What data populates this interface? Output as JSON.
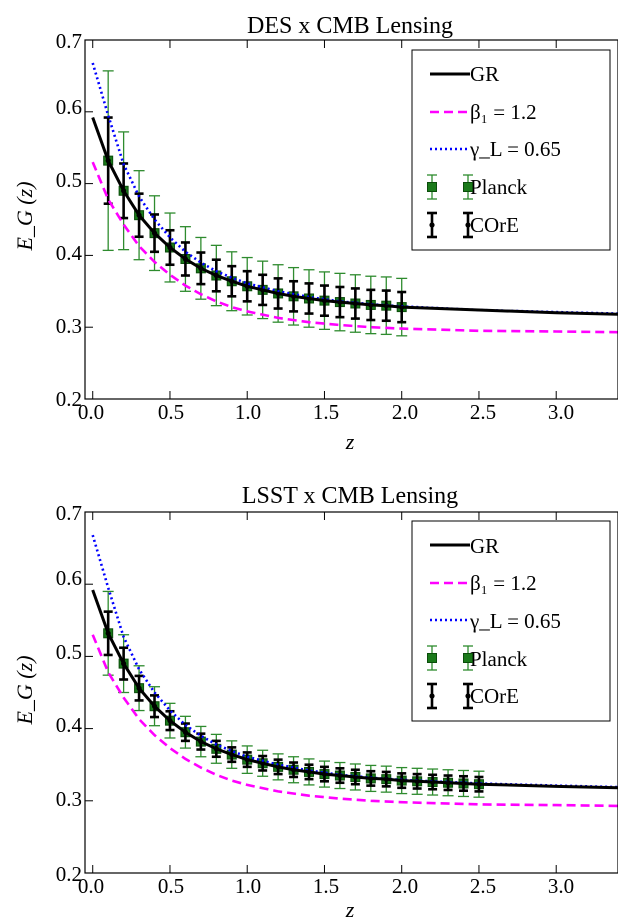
{
  "chart_data": [
    {
      "type": "line",
      "title": "DES x CMB Lensing",
      "xlabel": "z",
      "ylabel": "E_G (z)",
      "xlim": [
        -0.05,
        3.4
      ],
      "ylim": [
        0.2,
        0.7
      ],
      "x_ticks": [
        "0.0",
        "0.5",
        "1.0",
        "1.5",
        "2.0",
        "2.5",
        "3.0"
      ],
      "y_ticks": [
        "0.2",
        "0.3",
        "0.4",
        "0.5",
        "0.6",
        "0.7"
      ],
      "legend_position": "top-right",
      "series": [
        {
          "name": "GR",
          "style": "solid",
          "color": "#000000",
          "x": [
            0.0,
            0.1,
            0.2,
            0.3,
            0.4,
            0.5,
            0.6,
            0.7,
            0.8,
            0.9,
            1.0,
            1.1,
            1.2,
            1.3,
            1.4,
            1.5,
            1.6,
            1.7,
            1.8,
            1.9,
            2.0,
            2.5,
            3.0,
            3.4
          ],
          "y": [
            0.592,
            0.532,
            0.49,
            0.456,
            0.431,
            0.411,
            0.395,
            0.382,
            0.372,
            0.364,
            0.357,
            0.352,
            0.347,
            0.343,
            0.34,
            0.337,
            0.335,
            0.333,
            0.331,
            0.33,
            0.328,
            0.324,
            0.32,
            0.318
          ]
        },
        {
          "name": "β₁ = 1.2",
          "style": "dashed",
          "color": "#ff00ff",
          "x": [
            0.0,
            0.1,
            0.2,
            0.3,
            0.4,
            0.5,
            0.6,
            0.7,
            0.8,
            0.9,
            1.0,
            1.2,
            1.4,
            1.6,
            1.8,
            2.0,
            2.5,
            3.0,
            3.4
          ],
          "y": [
            0.53,
            0.478,
            0.443,
            0.413,
            0.391,
            0.373,
            0.358,
            0.346,
            0.336,
            0.328,
            0.322,
            0.313,
            0.307,
            0.303,
            0.3,
            0.298,
            0.295,
            0.294,
            0.293
          ]
        },
        {
          "name": "γ_L = 0.65",
          "style": "dotted",
          "color": "#0000ff",
          "x": [
            0.0,
            0.1,
            0.2,
            0.3,
            0.4,
            0.5,
            0.6,
            0.7,
            0.8,
            0.9,
            1.0,
            1.2,
            1.4,
            1.6,
            1.8,
            2.0,
            2.5,
            3.0,
            3.4
          ],
          "y": [
            0.668,
            0.595,
            0.527,
            0.482,
            0.45,
            0.425,
            0.405,
            0.39,
            0.378,
            0.369,
            0.361,
            0.35,
            0.342,
            0.336,
            0.332,
            0.329,
            0.324,
            0.321,
            0.319
          ]
        },
        {
          "name": "Planck",
          "style": "errorbar-square",
          "color": "#2e8b2e",
          "marker_color": "#1a7a1a",
          "x": [
            0.1,
            0.2,
            0.3,
            0.4,
            0.5,
            0.6,
            0.7,
            0.8,
            0.9,
            1.0,
            1.1,
            1.2,
            1.3,
            1.4,
            1.5,
            1.6,
            1.7,
            1.8,
            1.9,
            2.0
          ],
          "y": [
            0.532,
            0.49,
            0.456,
            0.431,
            0.411,
            0.395,
            0.382,
            0.372,
            0.364,
            0.357,
            0.352,
            0.347,
            0.343,
            0.34,
            0.337,
            0.335,
            0.333,
            0.331,
            0.33,
            0.328
          ],
          "err": [
            0.125,
            0.082,
            0.062,
            0.052,
            0.048,
            0.045,
            0.043,
            0.042,
            0.041,
            0.04,
            0.04,
            0.04,
            0.04,
            0.04,
            0.04,
            0.04,
            0.04,
            0.04,
            0.04,
            0.04
          ]
        },
        {
          "name": "COrE",
          "style": "errorbar-dot",
          "color": "#000000",
          "x": [
            0.1,
            0.2,
            0.3,
            0.4,
            0.5,
            0.6,
            0.7,
            0.8,
            0.9,
            1.0,
            1.1,
            1.2,
            1.3,
            1.4,
            1.5,
            1.6,
            1.7,
            1.8,
            1.9,
            2.0
          ],
          "y": [
            0.532,
            0.49,
            0.456,
            0.431,
            0.411,
            0.395,
            0.382,
            0.372,
            0.364,
            0.357,
            0.352,
            0.347,
            0.343,
            0.34,
            0.337,
            0.335,
            0.333,
            0.331,
            0.33,
            0.328
          ],
          "err": [
            0.06,
            0.038,
            0.03,
            0.026,
            0.024,
            0.023,
            0.022,
            0.022,
            0.021,
            0.021,
            0.021,
            0.021,
            0.021,
            0.021,
            0.021,
            0.021,
            0.021,
            0.021,
            0.021,
            0.021
          ]
        }
      ]
    },
    {
      "type": "line",
      "title": "LSST x CMB Lensing",
      "xlabel": "z",
      "ylabel": "E_G (z)",
      "xlim": [
        -0.05,
        3.4
      ],
      "ylim": [
        0.2,
        0.7
      ],
      "x_ticks": [
        "0.0",
        "0.5",
        "1.0",
        "1.5",
        "2.0",
        "2.5",
        "3.0"
      ],
      "y_ticks": [
        "0.2",
        "0.3",
        "0.4",
        "0.5",
        "0.6",
        "0.7"
      ],
      "legend_position": "top-right",
      "series": [
        {
          "name": "GR",
          "style": "solid",
          "color": "#000000",
          "x": [
            0.0,
            0.1,
            0.2,
            0.3,
            0.4,
            0.5,
            0.6,
            0.7,
            0.8,
            0.9,
            1.0,
            1.1,
            1.2,
            1.3,
            1.4,
            1.5,
            1.6,
            1.7,
            1.8,
            1.9,
            2.0,
            2.1,
            2.2,
            2.3,
            2.4,
            2.5,
            3.0,
            3.4
          ],
          "y": [
            0.592,
            0.532,
            0.49,
            0.456,
            0.431,
            0.411,
            0.395,
            0.382,
            0.372,
            0.364,
            0.357,
            0.352,
            0.347,
            0.343,
            0.34,
            0.337,
            0.335,
            0.333,
            0.331,
            0.33,
            0.328,
            0.327,
            0.326,
            0.325,
            0.324,
            0.323,
            0.32,
            0.318
          ]
        },
        {
          "name": "β₁ = 1.2",
          "style": "dashed",
          "color": "#ff00ff",
          "x": [
            0.0,
            0.1,
            0.2,
            0.3,
            0.4,
            0.5,
            0.6,
            0.7,
            0.8,
            0.9,
            1.0,
            1.2,
            1.4,
            1.6,
            1.8,
            2.0,
            2.5,
            3.0,
            3.4
          ],
          "y": [
            0.53,
            0.478,
            0.443,
            0.413,
            0.391,
            0.373,
            0.358,
            0.346,
            0.336,
            0.328,
            0.322,
            0.313,
            0.307,
            0.303,
            0.3,
            0.298,
            0.295,
            0.294,
            0.293
          ]
        },
        {
          "name": "γ_L = 0.65",
          "style": "dotted",
          "color": "#0000ff",
          "x": [
            0.0,
            0.1,
            0.2,
            0.3,
            0.4,
            0.5,
            0.6,
            0.7,
            0.8,
            0.9,
            1.0,
            1.2,
            1.4,
            1.6,
            1.8,
            2.0,
            2.5,
            3.0,
            3.4
          ],
          "y": [
            0.668,
            0.595,
            0.527,
            0.482,
            0.45,
            0.425,
            0.405,
            0.39,
            0.378,
            0.369,
            0.361,
            0.35,
            0.342,
            0.336,
            0.332,
            0.329,
            0.324,
            0.321,
            0.319
          ]
        },
        {
          "name": "Planck",
          "style": "errorbar-square",
          "color": "#2e8b2e",
          "marker_color": "#1a7a1a",
          "x": [
            0.1,
            0.2,
            0.3,
            0.4,
            0.5,
            0.6,
            0.7,
            0.8,
            0.9,
            1.0,
            1.1,
            1.2,
            1.3,
            1.4,
            1.5,
            1.6,
            1.7,
            1.8,
            1.9,
            2.0,
            2.1,
            2.2,
            2.3,
            2.4,
            2.5
          ],
          "y": [
            0.532,
            0.49,
            0.456,
            0.431,
            0.411,
            0.395,
            0.382,
            0.372,
            0.364,
            0.357,
            0.352,
            0.347,
            0.343,
            0.34,
            0.337,
            0.335,
            0.333,
            0.331,
            0.33,
            0.328,
            0.327,
            0.326,
            0.325,
            0.324,
            0.323
          ],
          "err": [
            0.058,
            0.04,
            0.031,
            0.027,
            0.024,
            0.022,
            0.021,
            0.02,
            0.019,
            0.019,
            0.018,
            0.018,
            0.018,
            0.018,
            0.018,
            0.018,
            0.018,
            0.018,
            0.018,
            0.018,
            0.018,
            0.018,
            0.018,
            0.018,
            0.018
          ]
        },
        {
          "name": "COrE",
          "style": "errorbar-dot",
          "color": "#000000",
          "x": [
            0.1,
            0.2,
            0.3,
            0.4,
            0.5,
            0.6,
            0.7,
            0.8,
            0.9,
            1.0,
            1.1,
            1.2,
            1.3,
            1.4,
            1.5,
            1.6,
            1.7,
            1.8,
            1.9,
            2.0,
            2.1,
            2.2,
            2.3,
            2.4,
            2.5
          ],
          "y": [
            0.532,
            0.49,
            0.456,
            0.431,
            0.411,
            0.395,
            0.382,
            0.372,
            0.364,
            0.357,
            0.352,
            0.347,
            0.343,
            0.34,
            0.337,
            0.335,
            0.333,
            0.331,
            0.33,
            0.328,
            0.327,
            0.326,
            0.325,
            0.324,
            0.323
          ],
          "err": [
            0.03,
            0.022,
            0.017,
            0.015,
            0.013,
            0.012,
            0.011,
            0.011,
            0.01,
            0.01,
            0.01,
            0.01,
            0.01,
            0.01,
            0.01,
            0.01,
            0.01,
            0.01,
            0.01,
            0.01,
            0.01,
            0.01,
            0.01,
            0.01,
            0.01
          ]
        }
      ]
    }
  ]
}
